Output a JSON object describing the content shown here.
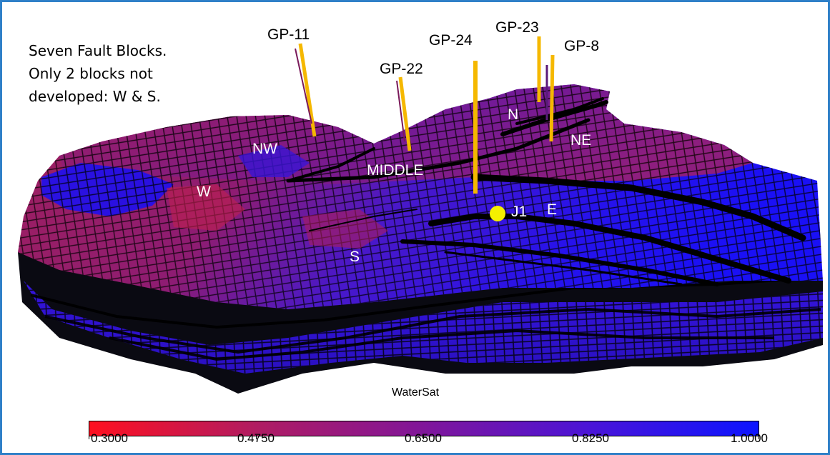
{
  "annotation": {
    "lines": [
      "Seven Fault Blocks.",
      "Only 2 blocks not",
      "developed: W & S."
    ]
  },
  "wells": [
    "GP-11",
    "GP-22",
    "GP-24",
    "GP-23",
    "GP-8"
  ],
  "blocks": [
    "NW",
    "W",
    "MIDDLE",
    "N",
    "NE",
    "E",
    "S"
  ],
  "marker": {
    "label": "J1",
    "color": "#f5f000"
  },
  "property": "WaterSat",
  "colorbar": {
    "min": 0.3,
    "max": 1.0,
    "tick_labels": [
      "0.3000",
      "0.4750",
      "0.6500",
      "0.8250",
      "1.0000"
    ],
    "colors": [
      "#ff1020",
      "#80169a",
      "#0c14ff"
    ]
  },
  "colors": {
    "frame": "#2f80c8",
    "well": "#f5b800"
  }
}
